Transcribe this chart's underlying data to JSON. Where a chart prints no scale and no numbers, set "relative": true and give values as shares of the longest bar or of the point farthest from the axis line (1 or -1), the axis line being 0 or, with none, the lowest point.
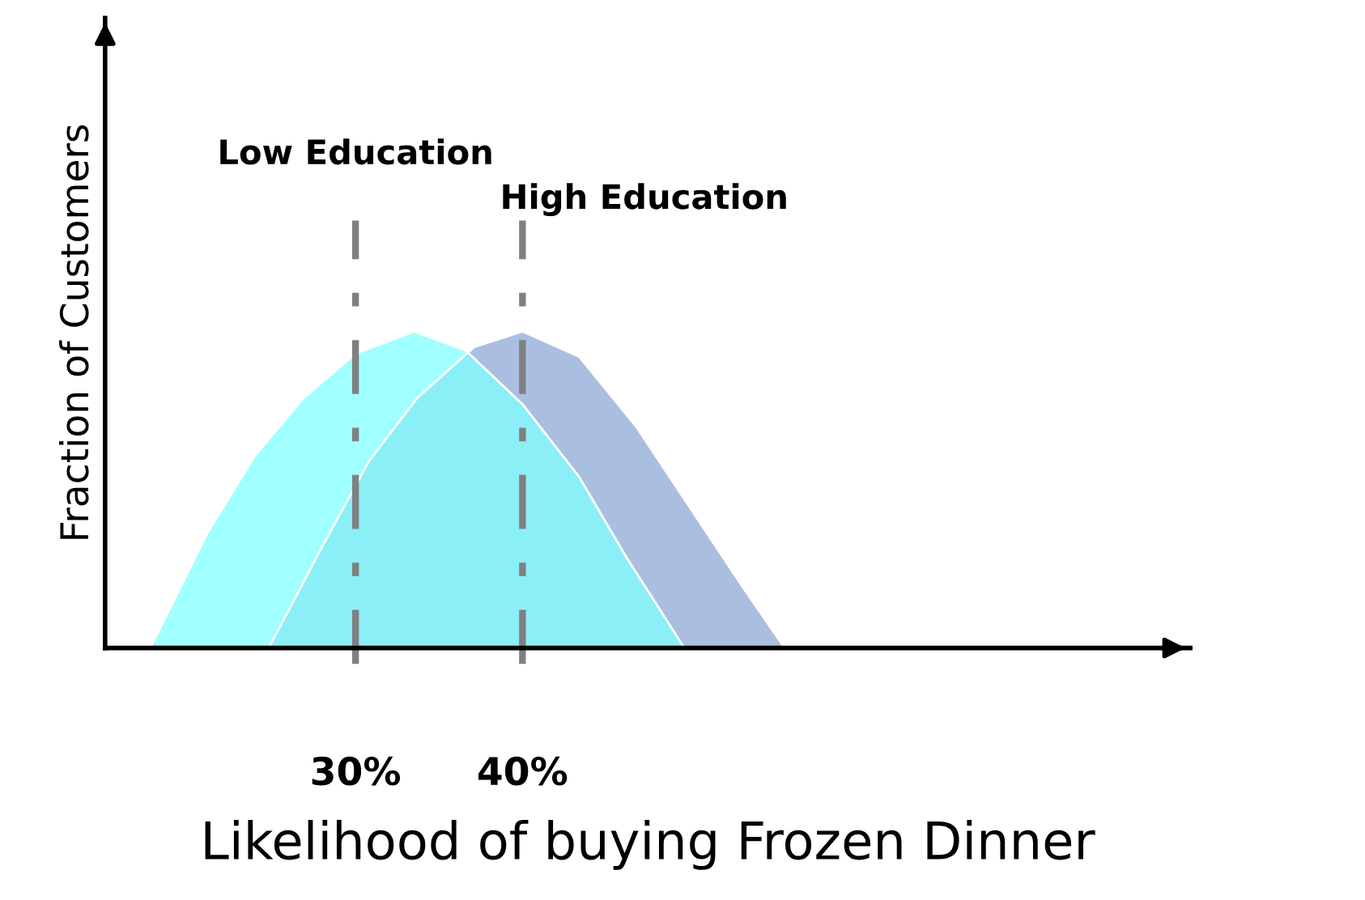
{
  "chart_data": {
    "type": "area",
    "relative": true,
    "xlabel": "Likelihood of buying Frozen Dinner",
    "ylabel": "Fraction of Customers",
    "xlim": [
      15,
      80
    ],
    "xticks": [
      {
        "value": 30,
        "label": "30%"
      },
      {
        "value": 40,
        "label": "40%"
      }
    ],
    "grid": false,
    "legend": false,
    "series": [
      {
        "color": "#aabfe0",
        "x": [
          24.8,
          27.9,
          30.8,
          33.7,
          37.1,
          40,
          43.4,
          46.8,
          50.2,
          53.1,
          55.7
        ],
        "values": [
          0,
          0.31,
          0.59,
          0.79,
          0.95,
          1,
          0.92,
          0.7,
          0.43,
          0.2,
          0
        ]
      },
      {
        "color": "#80ffff",
        "x": [
          17.7,
          21.1,
          24.0,
          26.9,
          30,
          33.5,
          36.6,
          40,
          43.4,
          46.3,
          49.7
        ],
        "values": [
          0,
          0.36,
          0.61,
          0.79,
          0.93,
          1,
          0.94,
          0.77,
          0.54,
          0.28,
          0
        ]
      }
    ],
    "ref_lines": [
      {
        "axis": "x",
        "value": 30,
        "label": "Low Education",
        "color": "#808080",
        "line_style": "dashdot"
      },
      {
        "axis": "x",
        "value": 40,
        "label": "High Education",
        "color": "#808080",
        "line_style": "dashdot"
      }
    ]
  }
}
